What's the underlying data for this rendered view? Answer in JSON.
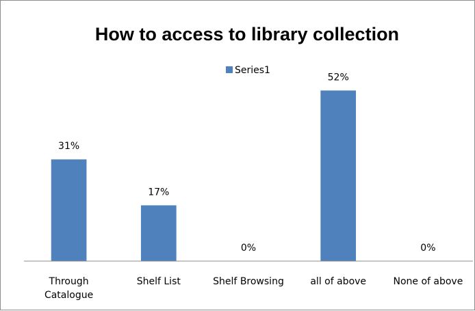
{
  "chart_data": {
    "type": "bar",
    "title": "How to access to library collection",
    "legend": {
      "position": "top",
      "entries": [
        "Series1"
      ]
    },
    "categories": [
      [
        "Through",
        "Catalogue"
      ],
      [
        "Shelf List"
      ],
      [
        "Shelf Browsing"
      ],
      [
        "all of above"
      ],
      [
        "None of above"
      ]
    ],
    "series": [
      {
        "name": "Series1",
        "values": [
          31,
          17,
          0,
          52,
          0
        ],
        "labels": [
          "31%",
          "17%",
          "0%",
          "52%",
          "0%"
        ],
        "color": "#4f81bd"
      }
    ],
    "ylim": [
      0,
      60
    ],
    "grid": false
  }
}
